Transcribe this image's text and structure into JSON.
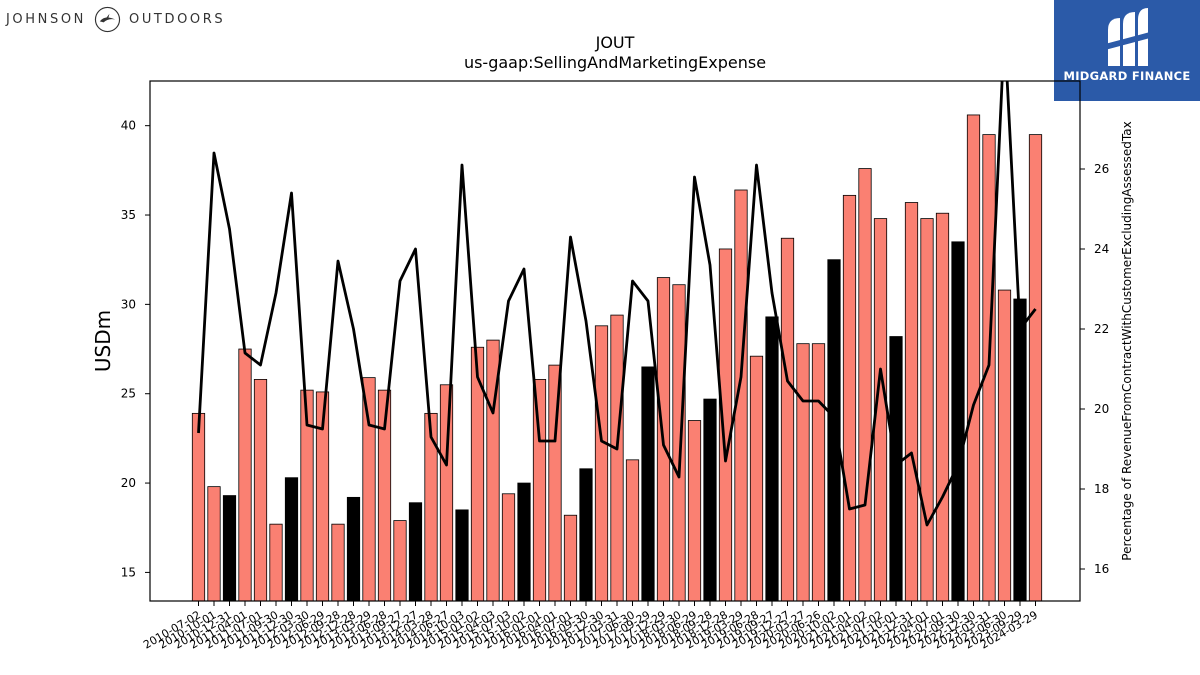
{
  "header": {
    "left_logo": {
      "text_left": "JOHNSON",
      "text_right": "OUTDOORS",
      "icon": "bird-emblem-icon"
    },
    "right_logo": {
      "text": "MIDGARD FINANCE",
      "icon": "midgard-mark-icon",
      "background": "#2b5aa8"
    }
  },
  "chart_data": {
    "type": "bar",
    "title": "JOUT",
    "subtitle": "us-gaap:SellingAndMarketingExpense",
    "ylabel": "USDm",
    "y2label": "Percentage of RevenueFromContractWithCustomerExcludingAssessedTax",
    "ylim": [
      13.4,
      42.5
    ],
    "y2lim": [
      15.2,
      28.2
    ],
    "yticks": [
      15,
      20,
      25,
      30,
      35,
      40
    ],
    "y2ticks": [
      16,
      18,
      20,
      22,
      24,
      26
    ],
    "grid": false,
    "legend": "none",
    "colors": {
      "bar": "#fa8072",
      "bar_highlight": "#000000",
      "line": "#000000"
    },
    "categories": [
      "2010-07-02",
      "2010-10-01",
      "2010-12-31",
      "2011-04-01",
      "2011-07-01",
      "2011-09-30",
      "2011-12-30",
      "2012-03-30",
      "2012-06-29",
      "2012-09-28",
      "2012-12-28",
      "2013-03-29",
      "2013-06-28",
      "2013-09-27",
      "2013-12-27",
      "2014-03-28",
      "2014-06-27",
      "2014-10-03",
      "2015-01-02",
      "2015-04-03",
      "2015-07-03",
      "2015-10-02",
      "2016-01-01",
      "2016-04-01",
      "2016-07-01",
      "2016-09-30",
      "2016-12-30",
      "2017-03-31",
      "2017-06-30",
      "2017-09-29",
      "2017-12-29",
      "2018-03-30",
      "2018-06-29",
      "2018-09-28",
      "2018-12-28",
      "2019-03-29",
      "2019-06-28",
      "2019-09-27",
      "2019-12-27",
      "2020-03-27",
      "2020-06-26",
      "2020-10-02",
      "2021-01-01",
      "2021-04-02",
      "2021-07-02",
      "2021-10-01",
      "2021-12-31",
      "2022-04-01",
      "2022-07-01",
      "2022-09-30",
      "2022-12-30",
      "2023-03-31",
      "2023-06-30",
      "2023-09-29",
      "2024-03-29"
    ],
    "xtick_labels": [
      "2010-07-02",
      "2010-10-01",
      "2010-12-31",
      "2011-04-01",
      "2011-07-01",
      "2011-09-30",
      "2011-12-30",
      "2012-03-30",
      "2012-06-29",
      "2012-09-28",
      "2012-12-28",
      "2013-03-29",
      "2013-06-28",
      "2013-09-27",
      "2013-12-27",
      "2014-03-28",
      "2014-06-27",
      "2014-10-03",
      "2015-01-02",
      "2015-04-03",
      "2015-07-03",
      "2015-10-02",
      "2016-01-01",
      "2016-04-01",
      "2016-07-01",
      "2016-09-30",
      "2016-12-30",
      "2017-03-31",
      "2017-06-30",
      "2017-09-29",
      "2017-12-29",
      "2018-03-30",
      "2018-06-29",
      "2018-09-28",
      "2018-12-28",
      "2019-03-29",
      "2019-06-28",
      "2019-09-27",
      "2019-12-27",
      "2020-03-27",
      "2020-06-26",
      "2020-10-02",
      "2021-01-01",
      "2021-04-02",
      "2021-07-02",
      "2021-10-01",
      "2021-12-31",
      "2022-04-01",
      "2022-07-01",
      "2022-09-30",
      "2022-12-30",
      "2023-03-31",
      "2023-06-30",
      "2023-09-29",
      "2024-03-29"
    ],
    "series": [
      {
        "type": "bar",
        "axis": "left",
        "values": [
          23.9,
          19.8,
          19.3,
          27.5,
          25.8,
          17.7,
          20.3,
          25.2,
          25.1,
          17.7,
          19.2,
          25.9,
          25.2,
          17.9,
          18.9,
          23.9,
          25.5,
          18.5,
          27.6,
          28.0,
          19.4,
          20.0,
          25.8,
          26.6,
          18.2,
          20.8,
          28.8,
          29.4,
          21.3,
          26.5,
          31.5,
          31.1,
          23.5,
          24.7,
          33.1,
          36.4,
          27.1,
          29.3,
          33.7,
          27.8,
          27.8,
          32.5,
          36.1,
          37.6,
          34.8,
          28.2,
          35.7,
          34.8,
          35.1,
          33.5,
          40.6,
          39.5,
          30.8,
          30.3,
          39.5
        ],
        "highlight": [
          false,
          false,
          true,
          false,
          false,
          false,
          true,
          false,
          false,
          false,
          true,
          false,
          false,
          false,
          true,
          false,
          false,
          true,
          false,
          false,
          false,
          true,
          false,
          false,
          false,
          true,
          false,
          false,
          false,
          true,
          false,
          false,
          false,
          true,
          false,
          false,
          false,
          true,
          false,
          false,
          false,
          true,
          false,
          false,
          false,
          true,
          false,
          false,
          false,
          true,
          false,
          false,
          false,
          true,
          false
        ]
      },
      {
        "type": "line",
        "axis": "right",
        "values": [
          19.4,
          26.4,
          24.5,
          21.4,
          21.1,
          22.9,
          25.4,
          19.6,
          19.5,
          23.7,
          22.0,
          19.6,
          19.5,
          23.2,
          24.0,
          19.3,
          18.6,
          26.1,
          20.8,
          19.9,
          22.7,
          23.5,
          19.2,
          19.2,
          24.3,
          22.2,
          19.2,
          19.0,
          23.2,
          22.7,
          19.1,
          18.3,
          25.8,
          23.6,
          18.7,
          20.8,
          26.1,
          22.9,
          20.7,
          20.2,
          20.2,
          19.8,
          17.5,
          17.6,
          21.0,
          18.6,
          18.9,
          17.1,
          17.8,
          18.6,
          20.1,
          21.1,
          29.5,
          22.0,
          22.5
        ]
      }
    ]
  }
}
